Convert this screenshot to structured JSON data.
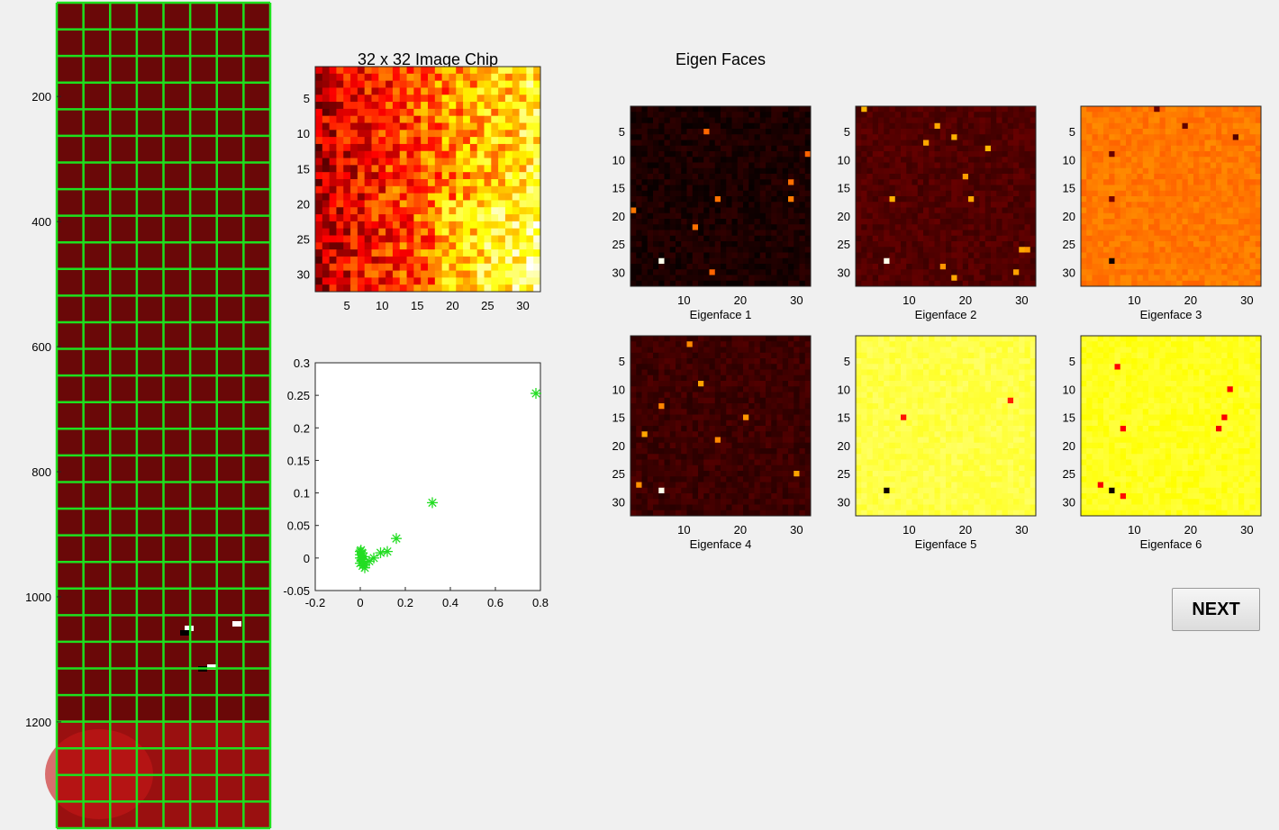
{
  "buttons": {
    "next_label": "NEXT"
  },
  "colors": {
    "grid_line": "#1ee01e",
    "star": "#22dd22",
    "background": "#f0f0f0"
  },
  "chart_data": [
    {
      "type": "heatmap",
      "name": "aerial-image-grid",
      "description_ticks": true,
      "yticks": [
        200,
        400,
        600,
        800,
        1000,
        1200
      ],
      "ylim": [
        50,
        1370
      ],
      "grid": true,
      "grid_columns": 8,
      "grid_rows": 31
    },
    {
      "type": "heatmap",
      "name": "image-chip",
      "title": "32 x 32 Image Chip",
      "xticks": [
        5,
        10,
        15,
        20,
        25,
        30
      ],
      "yticks": [
        5,
        10,
        15,
        20,
        25,
        30
      ],
      "size": 32,
      "colormap": "hot"
    },
    {
      "type": "scatter",
      "name": "eigen-projection",
      "xlim": [
        -0.2,
        0.8
      ],
      "ylim": [
        -0.05,
        0.3
      ],
      "xticks": [
        "-0.2",
        "0",
        "0.2",
        "0.4",
        "0.6",
        "0.8"
      ],
      "yticks": [
        "-0.05",
        "0",
        "0.05",
        "0.1",
        "0.15",
        "0.2",
        "0.25",
        "0.3"
      ],
      "marker": "*",
      "x": [
        0.78,
        0.32,
        0.16,
        0.12,
        0.09,
        0.06,
        0.04,
        0.02,
        0.01,
        0.0,
        0.0,
        0.005,
        0.01,
        0.015,
        0.0,
        0.003,
        0.008,
        0.012,
        0.0,
        0.02
      ],
      "y": [
        0.253,
        0.085,
        0.03,
        0.01,
        0.008,
        0.0,
        -0.005,
        -0.01,
        -0.012,
        0.01,
        0.005,
        0.0,
        -0.005,
        0.002,
        -0.008,
        0.012,
        0.008,
        -0.002,
        0.0,
        -0.015
      ]
    },
    {
      "type": "heatmap",
      "name": "eigen-faces",
      "title": "Eigen Faces",
      "xticks": [
        10,
        20,
        30
      ],
      "yticks": [
        5,
        10,
        15,
        20,
        25,
        30
      ],
      "faces": [
        {
          "label": "Eigenface 1",
          "base": 0.04
        },
        {
          "label": "Eigenface 2",
          "base": 0.12
        },
        {
          "label": "Eigenface 3",
          "base": 0.55
        },
        {
          "label": "Eigenface 4",
          "base": 0.09
        },
        {
          "label": "Eigenface 5",
          "base": 0.82
        },
        {
          "label": "Eigenface 6",
          "base": 0.78
        }
      ]
    }
  ]
}
